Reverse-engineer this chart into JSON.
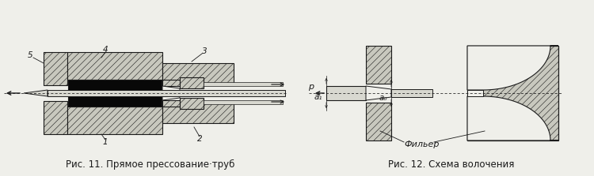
{
  "bg_color": "#efefea",
  "line_color": "#1a1a1a",
  "fill_hatch": "#c8c8be",
  "fill_dark": "#0a0a0a",
  "fill_light": "#e8e8e2",
  "fill_white": "#f2f2ed",
  "caption1": "Рис. 11. Прямое прессование·труб",
  "caption2": "Рис. 12. Схема волочения",
  "label1": "1",
  "label2": "2",
  "label3": "3",
  "label4": "4",
  "label5": "5",
  "label_p": "p",
  "label_a1": "a₁",
  "label_a0": "a₀",
  "label_filter": "Фильер",
  "caption_fontsize": 8.5,
  "label_fontsize": 7.5
}
